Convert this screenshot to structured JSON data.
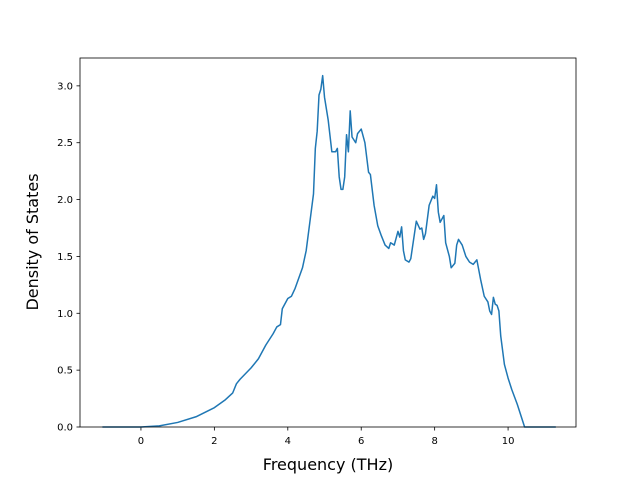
{
  "chart_data": {
    "type": "line",
    "xlabel": "Frequency (THz)",
    "ylabel": "Density of States",
    "color": "#1f77b4",
    "x": [
      -1.05,
      0,
      0.5,
      1,
      1.5,
      2,
      2.3,
      2.5,
      2.6,
      2.7,
      3,
      3.2,
      3.4,
      3.6,
      3.7,
      3.8,
      3.85,
      4.0,
      4.1,
      4.2,
      4.4,
      4.5,
      4.6,
      4.7,
      4.75,
      4.8,
      4.85,
      4.9,
      4.95,
      5.0,
      5.1,
      5.2,
      5.3,
      5.35,
      5.4,
      5.45,
      5.5,
      5.55,
      5.6,
      5.65,
      5.7,
      5.75,
      5.85,
      5.9,
      6.0,
      6.1,
      6.2,
      6.25,
      6.35,
      6.45,
      6.55,
      6.65,
      6.75,
      6.8,
      6.9,
      7.0,
      7.05,
      7.1,
      7.15,
      7.2,
      7.3,
      7.35,
      7.45,
      7.5,
      7.6,
      7.65,
      7.7,
      7.75,
      7.85,
      7.95,
      8.0,
      8.05,
      8.1,
      8.15,
      8.25,
      8.3,
      8.4,
      8.45,
      8.55,
      8.6,
      8.65,
      8.75,
      8.85,
      8.95,
      9.05,
      9.15,
      9.25,
      9.35,
      9.45,
      9.5,
      9.55,
      9.6,
      9.65,
      9.7,
      9.75,
      9.8,
      9.9,
      10.0,
      10.1,
      10.25,
      10.35,
      10.45,
      11.3
    ],
    "values": [
      0,
      0,
      0.01,
      0.04,
      0.09,
      0.17,
      0.24,
      0.3,
      0.38,
      0.42,
      0.52,
      0.6,
      0.72,
      0.82,
      0.88,
      0.9,
      1.04,
      1.13,
      1.15,
      1.22,
      1.4,
      1.55,
      1.8,
      2.05,
      2.45,
      2.6,
      2.92,
      2.97,
      3.09,
      2.9,
      2.7,
      2.42,
      2.42,
      2.45,
      2.2,
      2.09,
      2.09,
      2.2,
      2.57,
      2.42,
      2.78,
      2.55,
      2.5,
      2.58,
      2.62,
      2.5,
      2.24,
      2.22,
      1.95,
      1.77,
      1.68,
      1.6,
      1.57,
      1.62,
      1.6,
      1.72,
      1.67,
      1.76,
      1.55,
      1.47,
      1.45,
      1.48,
      1.7,
      1.81,
      1.74,
      1.75,
      1.65,
      1.7,
      1.95,
      2.03,
      2.01,
      2.13,
      1.89,
      1.8,
      1.86,
      1.62,
      1.5,
      1.4,
      1.44,
      1.6,
      1.65,
      1.6,
      1.5,
      1.45,
      1.43,
      1.47,
      1.3,
      1.15,
      1.1,
      1.02,
      0.99,
      1.14,
      1.08,
      1.07,
      1.02,
      0.8,
      0.55,
      0.43,
      0.33,
      0.2,
      0.1,
      0,
      0
    ],
    "xlim": [
      -1.66,
      11.85
    ],
    "ylim": [
      0,
      3.245
    ],
    "xticks": [
      0,
      2,
      4,
      6,
      8,
      10
    ],
    "yticks": [
      {
        "value": 0,
        "label": "0.0"
      },
      0.5,
      {
        "value": 1,
        "label": "1.0"
      },
      1.5,
      {
        "value": 2,
        "label": "2.0"
      },
      2.5,
      {
        "value": 3,
        "label": "3.0"
      }
    ],
    "grid": false
  }
}
